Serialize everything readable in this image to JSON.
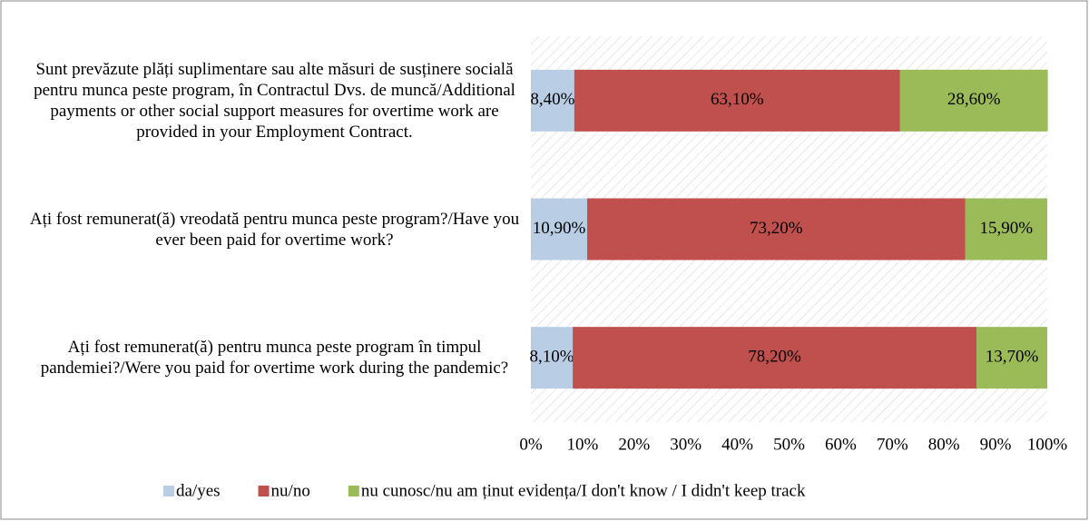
{
  "chart_data": {
    "type": "stacked-bar-horizontal",
    "categories": [
      "Sunt prevăzute plăți suplimentare sau alte măsuri de susținere socială pentru munca peste program, în Contractul Dvs. de muncă/Additional payments or other social support measures for overtime work are provided in your Employment Contract.",
      "Ați fost remunerat(ă) vreodată pentru munca peste program?/Have you ever been paid for overtime work?",
      "Ați fost remunerat(ă) pentru munca peste program în timpul pandemiei?/Were you paid for overtime work during the pandemic?"
    ],
    "series": [
      {
        "name": "da/yes",
        "color": "#b9cde5",
        "values": [
          8.4,
          10.9,
          8.1
        ],
        "value_labels": [
          "8,40%",
          "10,90%",
          "8,10%"
        ]
      },
      {
        "name": "nu/no",
        "color": "#c0504d",
        "values": [
          63.1,
          73.2,
          78.2
        ],
        "value_labels": [
          "63,10%",
          "73,20%",
          "78,20%"
        ]
      },
      {
        "name": "nu cunosc/nu am ținut evidența/I don't know / I didn't keep track",
        "color": "#9bbb59",
        "values": [
          28.6,
          15.9,
          13.7
        ],
        "value_labels": [
          "28,60%",
          "15,90%",
          "13,70%"
        ]
      }
    ],
    "xlim": [
      0,
      100
    ],
    "xticks": [
      {
        "value": 0,
        "label": "0%"
      },
      {
        "value": 10,
        "label": "10%"
      },
      {
        "value": 20,
        "label": "20%"
      },
      {
        "value": 30,
        "label": "30%"
      },
      {
        "value": 40,
        "label": "40%"
      },
      {
        "value": 50,
        "label": "50%"
      },
      {
        "value": 60,
        "label": "60%"
      },
      {
        "value": 70,
        "label": "70%"
      },
      {
        "value": 80,
        "label": "80%"
      },
      {
        "value": 90,
        "label": "90%"
      },
      {
        "value": 100,
        "label": "100%"
      }
    ],
    "legend": "bottom"
  }
}
